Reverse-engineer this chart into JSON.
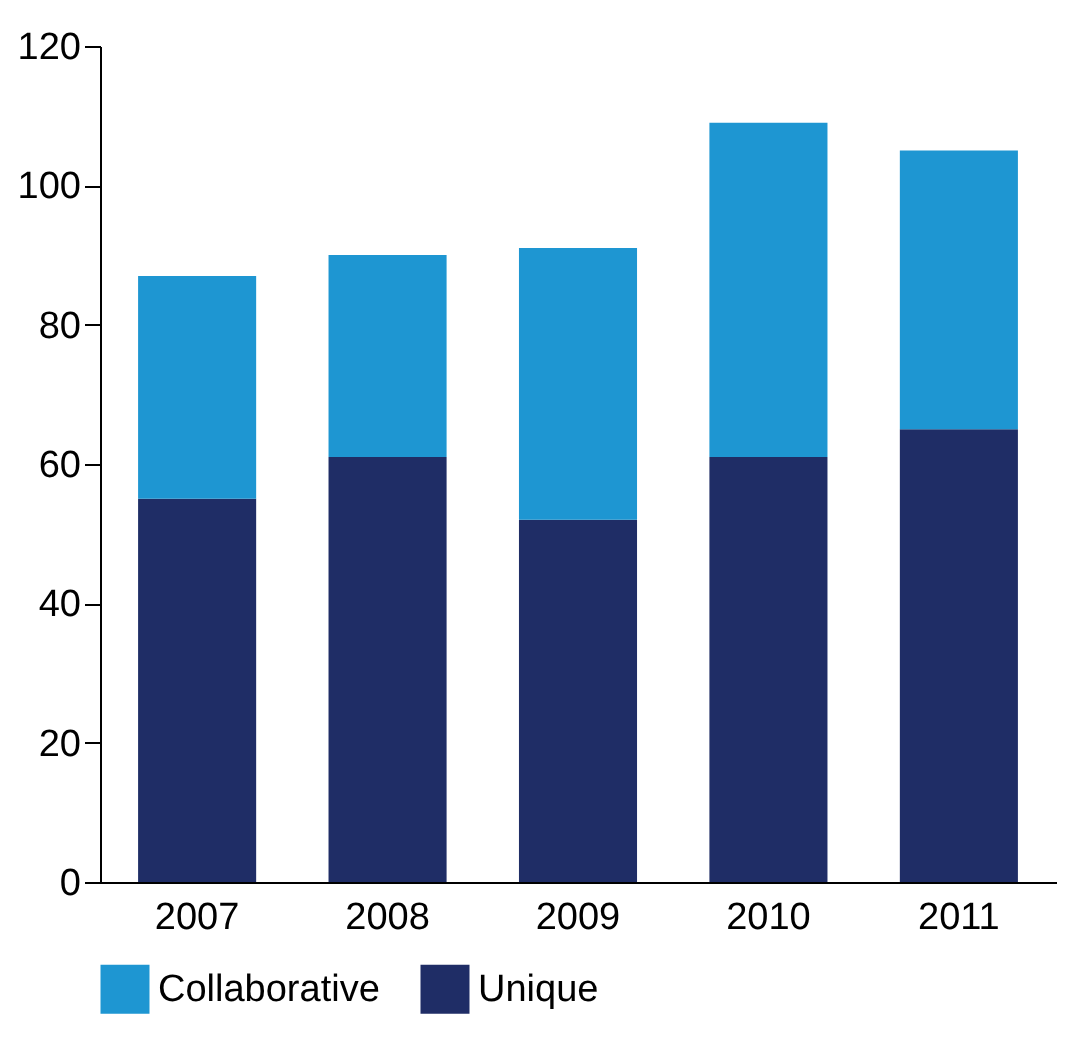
{
  "chart_data": {
    "type": "bar",
    "stacked": true,
    "categories": [
      "2007",
      "2008",
      "2009",
      "2010",
      "2011"
    ],
    "series": [
      {
        "name": "Unique",
        "color": "#1f2d66",
        "values": [
          55,
          61,
          52,
          61,
          65
        ]
      },
      {
        "name": "Collaborative",
        "color": "#1e96d2",
        "values": [
          32,
          29,
          39,
          48,
          40
        ]
      }
    ],
    "ylim": [
      0,
      120
    ],
    "yticks": [
      0,
      20,
      40,
      60,
      80,
      100,
      120
    ],
    "grid": false,
    "legend": "bottom"
  }
}
